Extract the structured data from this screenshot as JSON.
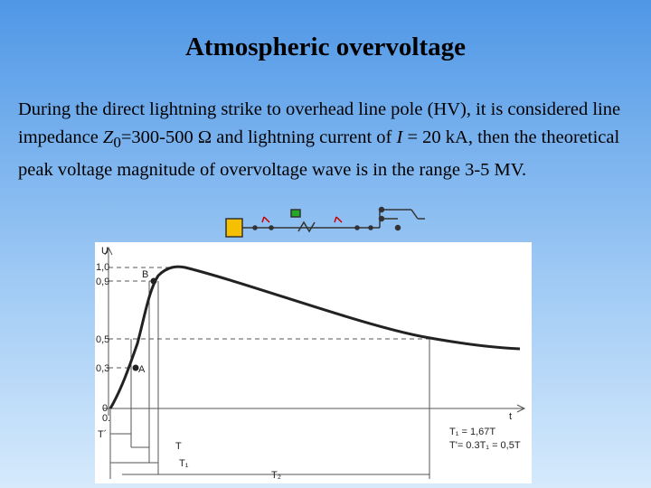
{
  "title": "Atmospheric overvoltage",
  "paragraph": [
    "During the direct lightning strike to overhead line pole (HV), it is considered line impedance ",
    "Z",
    "0",
    "=300-500 Ω and lightning current of ",
    "I",
    " = 20 kA, then the theoretical peak voltage magnitude of overvoltage wave is in the range 3-5 MV."
  ],
  "figure": {
    "labels": [
      "U",
      "1,0",
      "0,9",
      "0,5",
      "0,3",
      "0",
      "0.",
      "t",
      "B",
      "A",
      "T₁ = 1,67T",
      "T'= 0.3T₁ = 0,5T",
      "T´",
      "T",
      "T₁",
      "T₂"
    ]
  }
}
